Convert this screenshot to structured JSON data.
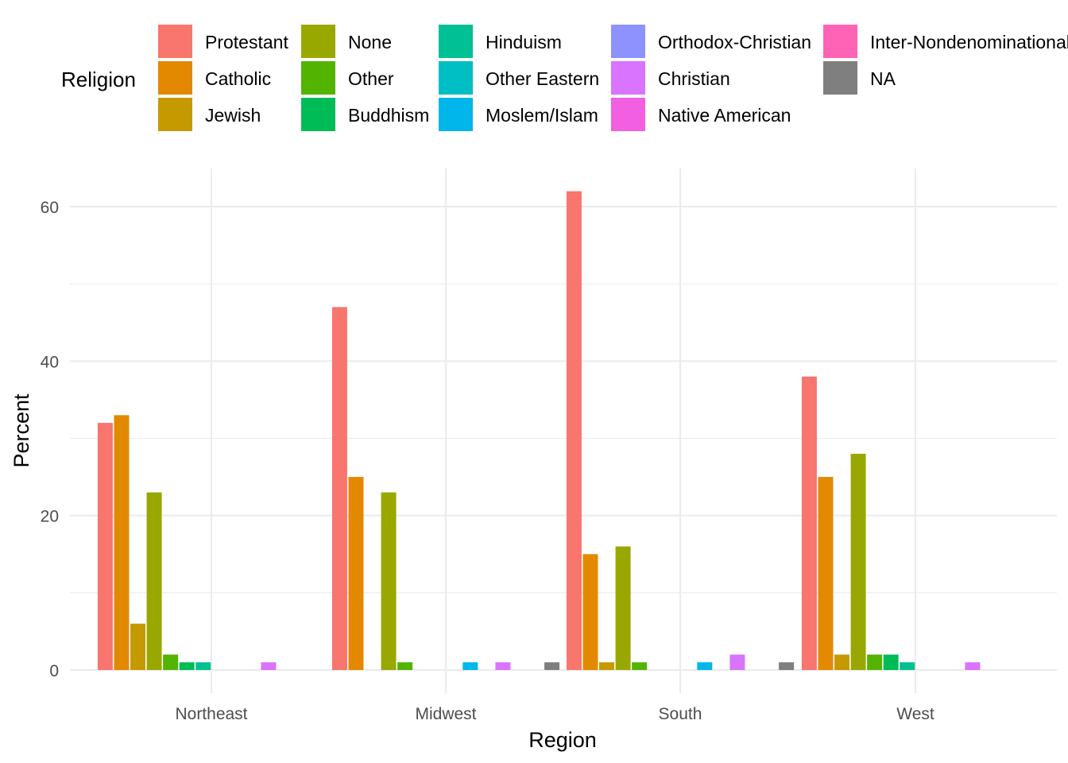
{
  "chart_data": {
    "type": "bar",
    "xlabel": "Region",
    "ylabel": "Percent",
    "ylim": [
      -3,
      65
    ],
    "yticks": [
      0,
      20,
      40,
      60
    ],
    "grid": true,
    "legend": {
      "title": "Religion",
      "position": "top",
      "entries": [
        {
          "name": "Protestant",
          "color": "#F8766D"
        },
        {
          "name": "Catholic",
          "color": "#E38900"
        },
        {
          "name": "Jewish",
          "color": "#C49A00"
        },
        {
          "name": "None",
          "color": "#99A800"
        },
        {
          "name": "Other",
          "color": "#53B400"
        },
        {
          "name": "Buddhism",
          "color": "#00BC56"
        },
        {
          "name": "Hinduism",
          "color": "#00C094"
        },
        {
          "name": "Other Eastern",
          "color": "#00BFC4"
        },
        {
          "name": "Moslem/Islam",
          "color": "#00B6EB"
        },
        {
          "name": "Orthodox-Christian",
          "color": "#8E92FF"
        },
        {
          "name": "Christian",
          "color": "#D874FF"
        },
        {
          "name": "Native American",
          "color": "#F25FE0"
        },
        {
          "name": "Inter-Nondenominational",
          "color": "#FF63B6"
        },
        {
          "name": "NA",
          "color": "#7F7F7F"
        }
      ]
    },
    "categories": [
      "Northeast",
      "Midwest",
      "South",
      "West"
    ],
    "series": [
      {
        "name": "Protestant",
        "values": [
          32,
          47,
          62,
          38
        ]
      },
      {
        "name": "Catholic",
        "values": [
          33,
          25,
          15,
          25
        ]
      },
      {
        "name": "Jewish",
        "values": [
          6,
          0,
          1,
          2
        ]
      },
      {
        "name": "None",
        "values": [
          23,
          23,
          16,
          28
        ]
      },
      {
        "name": "Other",
        "values": [
          2,
          1,
          1,
          2
        ]
      },
      {
        "name": "Buddhism",
        "values": [
          1,
          0,
          0,
          2
        ]
      },
      {
        "name": "Hinduism",
        "values": [
          1,
          0,
          0,
          1
        ]
      },
      {
        "name": "Other Eastern",
        "values": [
          0,
          0,
          0,
          0
        ]
      },
      {
        "name": "Moslem/Islam",
        "values": [
          0,
          1,
          1,
          0
        ]
      },
      {
        "name": "Orthodox-Christian",
        "values": [
          0,
          0,
          0,
          0
        ]
      },
      {
        "name": "Christian",
        "values": [
          1,
          1,
          2,
          1
        ]
      },
      {
        "name": "Native American",
        "values": [
          0,
          0,
          0,
          0
        ]
      },
      {
        "name": "Inter-Nondenominational",
        "values": [
          0,
          0,
          0,
          0
        ]
      },
      {
        "name": "NA",
        "values": [
          0,
          1,
          1,
          0
        ]
      }
    ]
  }
}
